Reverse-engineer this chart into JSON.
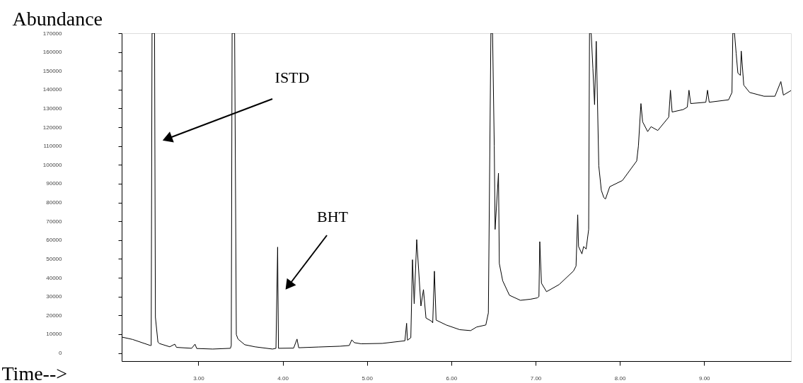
{
  "chart_data": {
    "type": "line",
    "xlabel": "Time-->",
    "ylabel": "Abundance",
    "xlim": [
      2.09,
      10.03
    ],
    "ylim": [
      -4300,
      170000
    ],
    "xticks": [
      {
        "value": 3,
        "label": "3.00"
      },
      {
        "value": 4,
        "label": "4.00"
      },
      {
        "value": 5,
        "label": "5.00"
      },
      {
        "value": 6,
        "label": "6.00"
      },
      {
        "value": 7,
        "label": "7.00"
      },
      {
        "value": 8,
        "label": "8.00"
      },
      {
        "value": 9,
        "label": "9.00"
      }
    ],
    "yticks": [
      0,
      10000,
      20000,
      30000,
      40000,
      50000,
      60000,
      70000,
      80000,
      90000,
      100000,
      110000,
      120000,
      130000,
      140000,
      150000,
      160000,
      170000
    ],
    "annotations": [
      "ISTD",
      "BHT"
    ],
    "series": [
      {
        "color": "#000000",
        "x": [
          2.09,
          2.22,
          2.43,
          2.44,
          2.45,
          2.48,
          2.49,
          2.52,
          2.54,
          2.66,
          2.72,
          2.74,
          2.92,
          2.96,
          2.98,
          3.17,
          3.38,
          3.39,
          3.4,
          3.43,
          3.45,
          3.47,
          3.55,
          3.67,
          3.88,
          3.92,
          3.94,
          3.95,
          4.13,
          4.17,
          4.19,
          4.43,
          4.68,
          4.79,
          4.82,
          4.85,
          4.93,
          5.18,
          5.43,
          5.45,
          5.47,
          5.48,
          5.52,
          5.54,
          5.56,
          5.59,
          5.64,
          5.67,
          5.7,
          5.77,
          5.78,
          5.8,
          5.82,
          5.94,
          6.1,
          6.23,
          6.3,
          6.41,
          6.44,
          6.47,
          6.49,
          6.51,
          6.52,
          6.56,
          6.57,
          6.61,
          6.69,
          6.82,
          6.94,
          7.02,
          7.04,
          7.05,
          7.07,
          7.13,
          7.28,
          7.45,
          7.48,
          7.5,
          7.51,
          7.55,
          7.57,
          7.6,
          7.63,
          7.64,
          7.66,
          7.68,
          7.7,
          7.72,
          7.75,
          7.78,
          7.81,
          7.83,
          7.88,
          8.03,
          8.2,
          8.22,
          8.25,
          8.27,
          8.33,
          8.37,
          8.45,
          8.58,
          8.6,
          8.62,
          8.75,
          8.8,
          8.82,
          8.84,
          9.02,
          9.04,
          9.06,
          9.29,
          9.33,
          9.34,
          9.36,
          9.38,
          9.4,
          9.43,
          9.44,
          9.47,
          9.54,
          9.71,
          9.84,
          9.91,
          9.94,
          10.03
        ],
        "values": [
          8500,
          7200,
          4000,
          4000,
          170000,
          170000,
          19000,
          5800,
          5000,
          3300,
          4700,
          3000,
          2500,
          4700,
          2400,
          2100,
          2500,
          4000,
          170000,
          170000,
          9800,
          7400,
          4400,
          3300,
          2100,
          2500,
          56300,
          2500,
          2600,
          7400,
          2800,
          3200,
          3600,
          4000,
          7000,
          5500,
          4900,
          5100,
          6400,
          6500,
          15800,
          6800,
          8100,
          49600,
          26200,
          60300,
          25000,
          33700,
          18600,
          16800,
          16000,
          43500,
          17500,
          14900,
          12400,
          11900,
          13800,
          14900,
          21300,
          170000,
          170000,
          110000,
          65700,
          95600,
          47600,
          38400,
          30700,
          28000,
          28600,
          29300,
          30000,
          59200,
          37100,
          32600,
          36400,
          43600,
          46200,
          73500,
          56600,
          52700,
          56600,
          55300,
          65700,
          170000,
          170000,
          151400,
          132000,
          165700,
          99500,
          86500,
          82600,
          81900,
          88400,
          91700,
          102100,
          110000,
          132600,
          122900,
          117700,
          120300,
          118300,
          125400,
          139700,
          128100,
          129400,
          130700,
          139700,
          132600,
          133300,
          139700,
          133300,
          134600,
          138500,
          170000,
          170000,
          159200,
          148800,
          147600,
          160500,
          142400,
          138500,
          136500,
          136500,
          144300,
          137100,
          139500
        ]
      }
    ]
  }
}
